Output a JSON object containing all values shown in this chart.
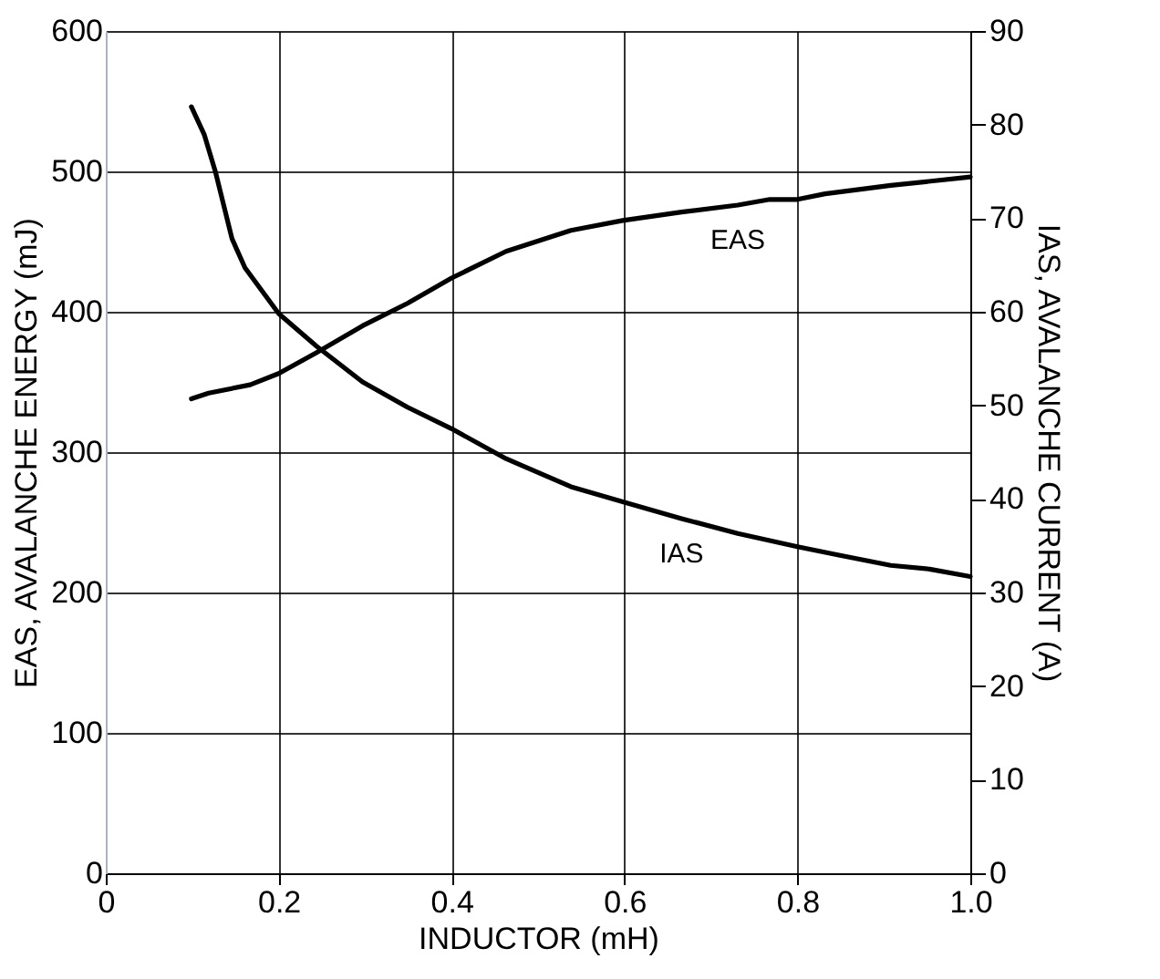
{
  "chart_data": {
    "type": "line",
    "xlabel": "INDUCTOR (mH)",
    "ylabel": "EAS, AVALANCHE ENERGY (mJ)",
    "y2label": "IAS, AVALANCHE CURRENT (A)",
    "xlim": [
      0,
      1.0
    ],
    "xticks": [
      {
        "value": 0,
        "label": "0"
      },
      0.2,
      0.4,
      0.6,
      0.8,
      {
        "value": 1.0,
        "label": "1.0"
      }
    ],
    "ylim": [
      0,
      600
    ],
    "yticks": [
      0,
      100,
      200,
      300,
      400,
      500,
      600
    ],
    "y2lim": [
      0,
      90
    ],
    "y2ticks": [
      0,
      10,
      20,
      30,
      40,
      50,
      60,
      70,
      80,
      90
    ],
    "grid": true,
    "marker": "none",
    "line_style": "solid",
    "series": [
      {
        "name": "EAS",
        "color": "#000000",
        "x": [
          0.099,
          0.119,
          0.167,
          0.2,
          0.244,
          0.297,
          0.349,
          0.4,
          0.463,
          0.538,
          0.598,
          0.666,
          0.731,
          0.768,
          0.8,
          0.832,
          0.908,
          1.0
        ],
        "values": [
          338,
          342,
          348,
          356,
          371,
          390,
          406,
          424,
          443,
          458,
          465,
          471,
          476,
          480,
          480,
          484,
          490,
          496
        ]
      },
      {
        "name": "IAS",
        "color": "#000000",
        "axis": "y2",
        "x": [
          0.099,
          0.114,
          0.127,
          0.146,
          0.161,
          0.2,
          0.244,
          0.297,
          0.349,
          0.4,
          0.463,
          0.538,
          0.598,
          0.666,
          0.731,
          0.8,
          0.848,
          0.908,
          0.953,
          1.0
        ],
        "values": [
          81.9,
          78.9,
          74.9,
          67.8,
          64.7,
          59.8,
          56.3,
          52.5,
          49.8,
          47.5,
          44.3,
          41.3,
          39.7,
          37.9,
          36.3,
          34.9,
          34.0,
          32.9,
          32.5,
          31.7
        ]
      }
    ]
  }
}
